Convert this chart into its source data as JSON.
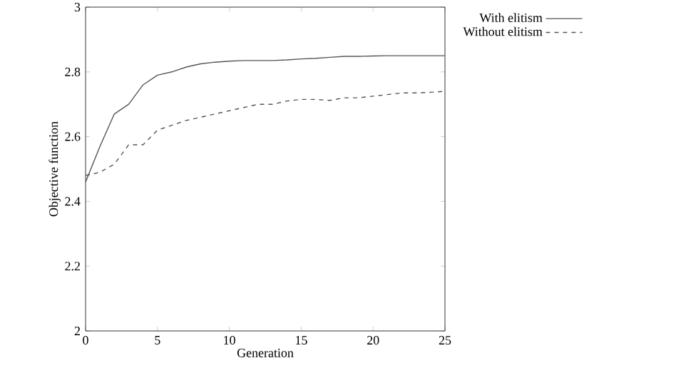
{
  "chart_data": {
    "type": "line",
    "xlabel": "Generation",
    "ylabel": "Objective function",
    "xlim": [
      0,
      25
    ],
    "ylim": [
      2,
      3
    ],
    "xticks": [
      0,
      5,
      10,
      15,
      20,
      25
    ],
    "yticks": [
      2,
      2.2,
      2.4,
      2.6,
      2.8,
      3
    ],
    "x": [
      0,
      1,
      2,
      3,
      4,
      5,
      6,
      7,
      8,
      9,
      10,
      11,
      12,
      13,
      14,
      15,
      16,
      17,
      18,
      19,
      20,
      21,
      22,
      23,
      24,
      25
    ],
    "series": [
      {
        "name": "With elitism",
        "color": "#555555",
        "line_style": "solid",
        "values": [
          2.46,
          2.57,
          2.67,
          2.7,
          2.76,
          2.79,
          2.8,
          2.815,
          2.825,
          2.83,
          2.833,
          2.835,
          2.835,
          2.835,
          2.837,
          2.84,
          2.842,
          2.845,
          2.848,
          2.848,
          2.849,
          2.85,
          2.85,
          2.85,
          2.85,
          2.85
        ]
      },
      {
        "name": "Without elitism",
        "color": "#555555",
        "line_style": "dashed",
        "values": [
          2.48,
          2.49,
          2.515,
          2.575,
          2.575,
          2.62,
          2.635,
          2.65,
          2.66,
          2.67,
          2.68,
          2.69,
          2.7,
          2.7,
          2.71,
          2.715,
          2.715,
          2.712,
          2.72,
          2.72,
          2.725,
          2.73,
          2.735,
          2.735,
          2.737,
          2.74
        ]
      }
    ],
    "legend": "top right",
    "grid": false,
    "marker": "none"
  }
}
